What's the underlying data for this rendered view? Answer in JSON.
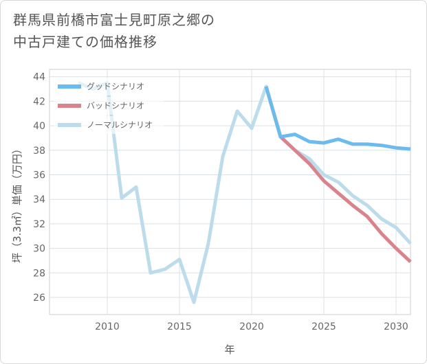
{
  "title_lines": [
    "群馬県前橋市富士見町原之郷の",
    "中古戸建ての価格推移"
  ],
  "chart_data": {
    "type": "line",
    "xlabel": "年",
    "ylabel": "坪（3.3㎡）単価（万円）",
    "xlim": [
      2006,
      2031
    ],
    "ylim": [
      24.6,
      44.6
    ],
    "xticks": [
      2010,
      2015,
      2020,
      2025,
      2030
    ],
    "yticks": [
      26,
      28,
      30,
      32,
      34,
      36,
      38,
      40,
      42,
      44
    ],
    "grid": true,
    "legend_position": "top-left",
    "series": [
      {
        "name": "グッドシナリオ",
        "color": "#6cbbee",
        "x": [
          2021,
          2022,
          2023,
          2024,
          2025,
          2026,
          2027,
          2028,
          2029,
          2030,
          2031
        ],
        "values": [
          43.2,
          39.1,
          39.3,
          38.7,
          38.6,
          38.9,
          38.5,
          38.5,
          38.4,
          38.2,
          38.1
        ]
      },
      {
        "name": "バッドシナリオ",
        "color": "#d9848c",
        "x": [
          2021,
          2022,
          2023,
          2024,
          2025,
          2026,
          2027,
          2028,
          2029,
          2030,
          2031
        ],
        "values": [
          43.2,
          39.1,
          38.0,
          36.9,
          35.5,
          34.5,
          33.5,
          32.6,
          31.2,
          30.0,
          28.9
        ]
      },
      {
        "name": "ノーマルシナリオ",
        "color": "#bcdcec",
        "x": [
          2008,
          2009,
          2010,
          2011,
          2012,
          2013,
          2014,
          2015,
          2016,
          2017,
          2018,
          2019,
          2020,
          2021,
          2022,
          2023,
          2024,
          2025,
          2026,
          2027,
          2028,
          2029,
          2030,
          2031
        ],
        "values": [
          43.5,
          43.0,
          43.5,
          34.1,
          35.0,
          28.0,
          28.3,
          29.1,
          25.6,
          30.4,
          37.5,
          41.2,
          39.8,
          43.2,
          39.1,
          38.0,
          37.3,
          36.0,
          35.4,
          34.3,
          33.5,
          32.4,
          31.7,
          30.4
        ]
      }
    ]
  }
}
